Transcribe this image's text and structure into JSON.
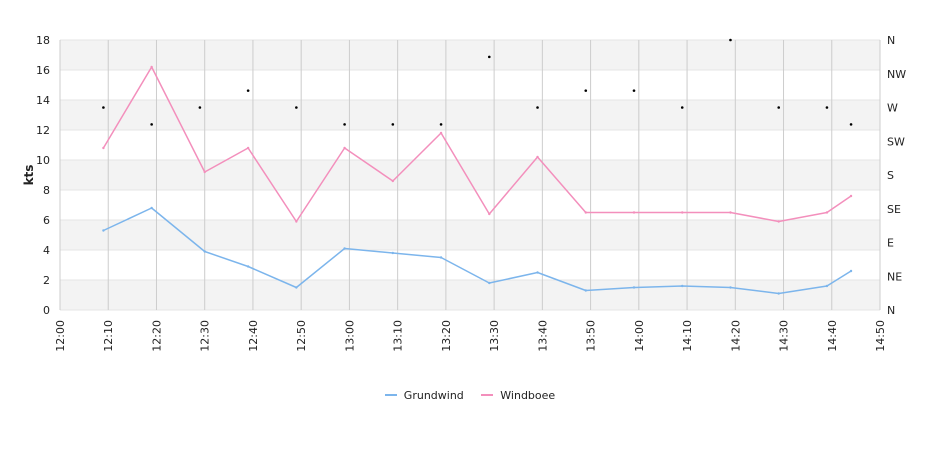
{
  "chart_data": {
    "type": "line",
    "ylabel": "kts",
    "ylim": [
      0,
      18
    ],
    "y_ticks": [
      "0",
      "2",
      "4",
      "6",
      "8",
      "10",
      "12",
      "14",
      "16",
      "18"
    ],
    "x_ticks": [
      "12:00",
      "12:10",
      "12:20",
      "12:30",
      "12:40",
      "12:50",
      "13:00",
      "13:10",
      "13:20",
      "13:30",
      "13:40",
      "13:50",
      "14:00",
      "14:10",
      "14:20",
      "14:30",
      "14:40",
      "14:50"
    ],
    "x_range_minutes": [
      0,
      170
    ],
    "direction_ticks": [
      "N",
      "NE",
      "E",
      "SE",
      "S",
      "SW",
      "W",
      "NW",
      "N"
    ],
    "direction_range_deg": [
      0,
      360
    ],
    "x_minutes": [
      9,
      19,
      30,
      39,
      49,
      59,
      69,
      79,
      89,
      99,
      109,
      119,
      129,
      139,
      149,
      159,
      164
    ],
    "series": [
      {
        "name": "Grundwind",
        "color": "#7cb5ec",
        "values": [
          5.3,
          6.8,
          3.9,
          2.9,
          1.5,
          4.1,
          3.8,
          3.5,
          1.8,
          2.5,
          1.3,
          1.5,
          1.6,
          1.5,
          1.1,
          1.6,
          2.6
        ]
      },
      {
        "name": "Windboee",
        "color": "#f38fbc",
        "values": [
          10.8,
          16.2,
          9.2,
          10.8,
          5.9,
          10.8,
          8.6,
          11.8,
          6.4,
          10.2,
          6.5,
          6.5,
          6.5,
          6.5,
          5.9,
          6.5,
          7.6
        ]
      }
    ],
    "direction_points": {
      "color": "#000000",
      "x_minutes": [
        9,
        19,
        29,
        39,
        49,
        59,
        69,
        79,
        89,
        99,
        109,
        119,
        129,
        139,
        149,
        159,
        164
      ],
      "degrees": [
        270,
        247.5,
        270,
        292.5,
        270,
        247.5,
        247.5,
        247.5,
        337.5,
        270,
        292.5,
        292.5,
        270,
        360,
        270,
        270,
        247.5
      ]
    },
    "grid": true,
    "legend_position": "bottom-center"
  }
}
